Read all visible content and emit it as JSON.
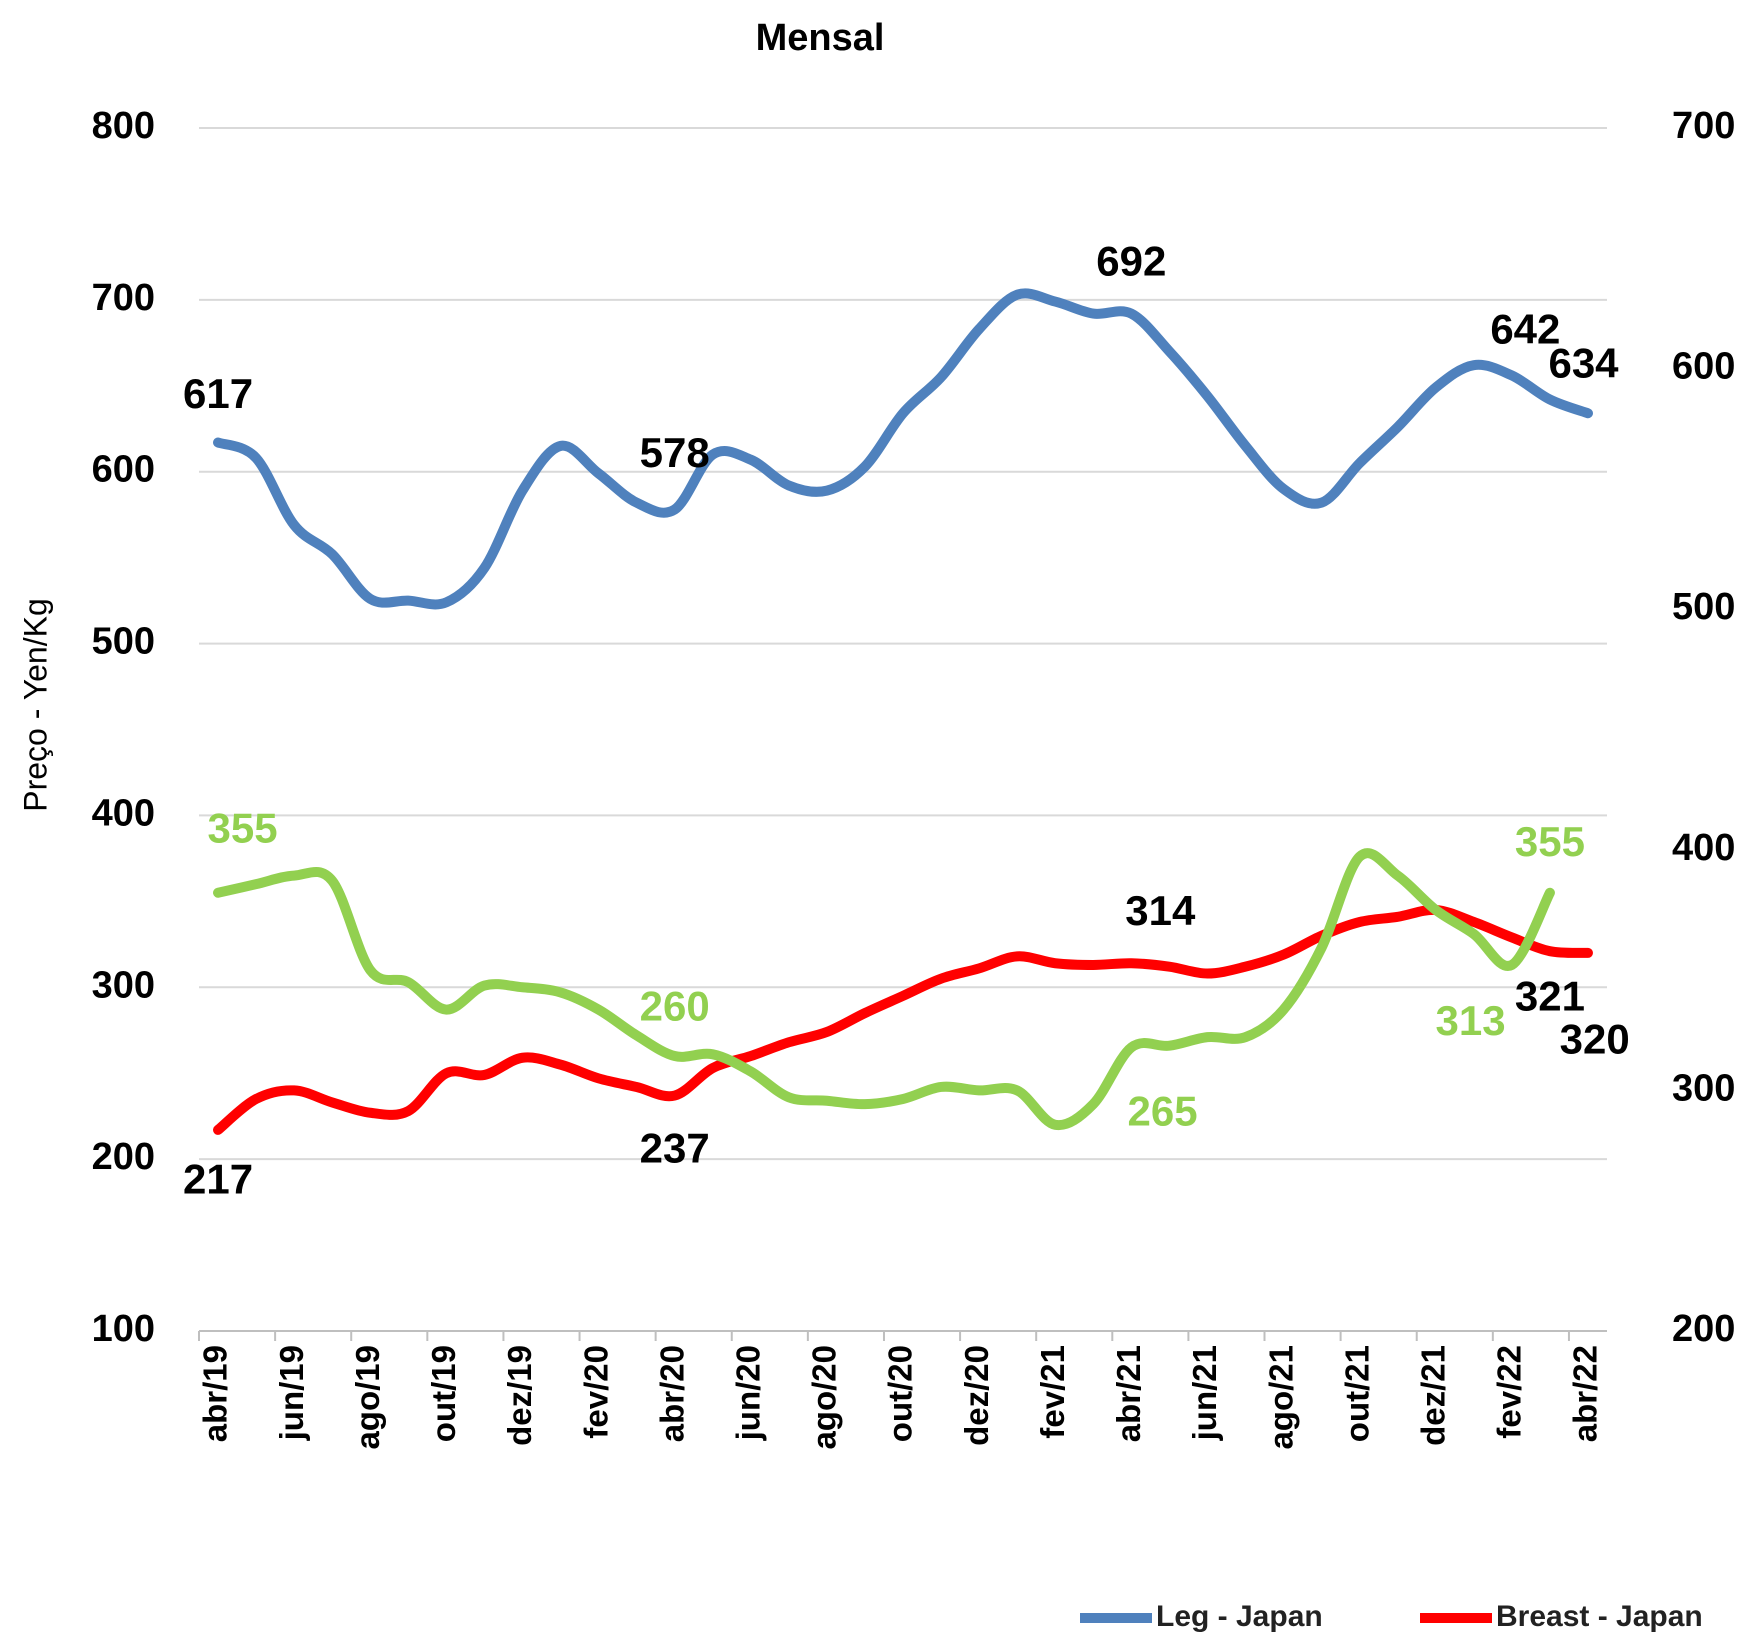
{
  "chart_data": {
    "type": "line",
    "title": "Mensal",
    "y_label": "Preço - Yen/Kg",
    "categories": [
      "abr/19",
      null,
      "jun/19",
      null,
      "ago/19",
      null,
      "out/19",
      null,
      "dez/19",
      null,
      "fev/20",
      null,
      "abr/20",
      null,
      "jun/20",
      null,
      "ago/20",
      null,
      "out/20",
      null,
      "dez/20",
      null,
      "fev/21",
      null,
      "abr/21",
      null,
      "jun/21",
      null,
      "ago/21",
      null,
      "out/21",
      null,
      "dez/21",
      null,
      "fev/22",
      null,
      "abr/22"
    ],
    "series": [
      {
        "name": "Leg - Japan",
        "color": "#4f81bd",
        "labels_at": [
          0,
          12,
          24,
          35,
          36
        ],
        "values": [
          617,
          608,
          569,
          552,
          526,
          525,
          524,
          544,
          589,
          615,
          599,
          582,
          578,
          610,
          607,
          592,
          589,
          603,
          634,
          655,
          683,
          703,
          699,
          692,
          692,
          670,
          644,
          615,
          590,
          582,
          605,
          626,
          649,
          662,
          656,
          642,
          634
        ]
      },
      {
        "name": "Breast - Japan",
        "color": "#ff0000",
        "labels_at": [
          0,
          12,
          24,
          35,
          36
        ],
        "values": [
          217,
          235,
          240,
          233,
          227,
          228,
          250,
          249,
          259,
          255,
          247,
          242,
          237,
          253,
          260,
          268,
          274,
          285,
          295,
          305,
          311,
          318,
          314,
          313,
          314,
          312,
          308,
          312,
          319,
          330,
          338,
          341,
          345,
          338,
          329,
          321,
          320
        ]
      },
      {
        "color": "#92d050",
        "labels_at": [
          0,
          12,
          24,
          34,
          35
        ],
        "values": [
          355,
          360,
          365,
          362,
          310,
          303,
          287,
          301,
          300,
          297,
          287,
          272,
          260,
          261,
          251,
          236,
          234,
          232,
          235,
          242,
          240,
          240,
          220,
          232,
          265,
          266,
          271,
          271,
          287,
          323,
          376,
          365,
          345,
          331,
          313,
          355,
          null
        ]
      }
    ],
    "ylim": [
      100,
      800
    ],
    "yticks": [
      100,
      200,
      300,
      400,
      500,
      600,
      700,
      800
    ],
    "y2lim": [
      200,
      700
    ],
    "y2ticks": [
      200,
      300,
      400,
      500,
      600,
      700
    ],
    "grid": true,
    "legend": "bottom-right"
  }
}
